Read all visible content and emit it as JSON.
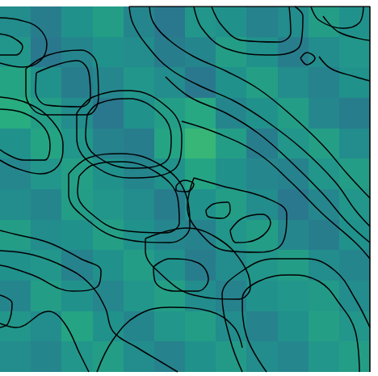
{
  "chart_data": {
    "type": "contour",
    "xlim": [
      0,
      458
    ],
    "ylim": [
      0,
      452
    ],
    "tick_labels": false,
    "grid": false,
    "color": "#000000",
    "heatmap": {
      "x_edges": [
        0,
        38,
        76,
        115,
        153,
        191,
        229,
        267,
        305,
        344,
        382,
        420,
        458
      ],
      "y_edges": [
        452,
        414,
        377,
        339,
        301,
        264,
        226,
        188,
        151,
        113,
        75,
        38,
        0
      ],
      "color_range": [
        0,
        1
      ],
      "cells": [
        [
          0.48,
          0.42,
          0.5,
          0.55,
          0.45,
          0.4,
          0.52,
          0.5,
          0.44,
          0.48,
          0.55,
          0.5
        ],
        [
          0.52,
          0.4,
          0.45,
          0.5,
          0.48,
          0.42,
          0.45,
          0.55,
          0.5,
          0.42,
          0.48,
          0.52
        ],
        [
          0.58,
          0.5,
          0.42,
          0.46,
          0.52,
          0.48,
          0.4,
          0.5,
          0.56,
          0.48,
          0.44,
          0.5
        ],
        [
          0.62,
          0.55,
          0.48,
          0.4,
          0.5,
          0.55,
          0.6,
          0.45,
          0.5,
          0.55,
          0.46,
          0.42
        ],
        [
          0.5,
          0.58,
          0.52,
          0.44,
          0.42,
          0.58,
          0.66,
          0.55,
          0.42,
          0.52,
          0.56,
          0.48
        ],
        [
          0.46,
          0.52,
          0.56,
          0.5,
          0.45,
          0.5,
          0.58,
          0.5,
          0.46,
          0.44,
          0.52,
          0.55
        ],
        [
          0.48,
          0.45,
          0.55,
          0.52,
          0.48,
          0.42,
          0.5,
          0.55,
          0.48,
          0.4,
          0.46,
          0.52
        ],
        [
          0.55,
          0.48,
          0.5,
          0.56,
          0.5,
          0.46,
          0.44,
          0.52,
          0.55,
          0.46,
          0.42,
          0.5
        ],
        [
          0.5,
          0.52,
          0.44,
          0.5,
          0.55,
          0.5,
          0.42,
          0.48,
          0.52,
          0.55,
          0.48,
          0.45
        ],
        [
          0.45,
          0.55,
          0.5,
          0.46,
          0.52,
          0.56,
          0.48,
          0.44,
          0.5,
          0.52,
          0.54,
          0.48
        ],
        [
          0.52,
          0.48,
          0.58,
          0.5,
          0.45,
          0.52,
          0.55,
          0.48,
          0.44,
          0.5,
          0.56,
          0.52
        ],
        [
          0.48,
          0.45,
          0.52,
          0.55,
          0.48,
          0.44,
          0.5,
          0.54,
          0.48,
          0.46,
          0.52,
          0.55
        ]
      ]
    },
    "contours": [
      [
        [
          0,
          438
        ],
        [
          25,
          435
        ],
        [
          48,
          425
        ],
        [
          58,
          405
        ],
        [
          50,
          385
        ],
        [
          28,
          377
        ],
        [
          0,
          382
        ]
      ],
      [
        [
          0,
          418
        ],
        [
          15,
          414
        ],
        [
          28,
          402
        ],
        [
          20,
          392
        ],
        [
          0,
          392
        ]
      ],
      [
        [
          32,
          375
        ],
        [
          60,
          392
        ],
        [
          100,
          398
        ],
        [
          120,
          380
        ],
        [
          122,
          340
        ],
        [
          108,
          318
        ],
        [
          55,
          318
        ],
        [
          32,
          345
        ],
        [
          32,
          375
        ]
      ],
      [
        [
          45,
          370
        ],
        [
          95,
          385
        ],
        [
          110,
          370
        ],
        [
          112,
          340
        ],
        [
          100,
          328
        ],
        [
          58,
          330
        ],
        [
          44,
          348
        ],
        [
          45,
          370
        ]
      ],
      [
        [
          160,
          452
        ],
        [
          458,
          452
        ],
        [
          458,
          0
        ]
      ],
      [
        [
          160,
          452
        ],
        [
          165,
          430
        ],
        [
          185,
          400
        ],
        [
          210,
          375
        ],
        [
          245,
          355
        ],
        [
          290,
          335
        ],
        [
          330,
          310
        ],
        [
          375,
          275
        ],
        [
          415,
          235
        ],
        [
          440,
          200
        ],
        [
          458,
          180
        ]
      ],
      [
        [
          185,
          452
        ],
        [
          190,
          432
        ],
        [
          210,
          410
        ],
        [
          240,
          390
        ],
        [
          280,
          372
        ],
        [
          320,
          350
        ],
        [
          360,
          318
        ],
        [
          400,
          280
        ],
        [
          430,
          245
        ],
        [
          458,
          215
        ]
      ],
      [
        [
          205,
          365
        ],
        [
          235,
          340
        ],
        [
          280,
          320
        ],
        [
          320,
          295
        ],
        [
          360,
          260
        ],
        [
          400,
          220
        ],
        [
          430,
          185
        ],
        [
          458,
          160
        ]
      ],
      [
        [
          225,
          310
        ],
        [
          270,
          295
        ],
        [
          320,
          270
        ],
        [
          360,
          235
        ],
        [
          400,
          195
        ],
        [
          440,
          160
        ],
        [
          458,
          140
        ]
      ],
      [
        [
          240,
          452
        ],
        [
          250,
          425
        ],
        [
          280,
          400
        ],
        [
          340,
          392
        ],
        [
          372,
          405
        ],
        [
          375,
          440
        ],
        [
          365,
          452
        ]
      ],
      [
        [
          262,
          452
        ],
        [
          275,
          428
        ],
        [
          300,
          410
        ],
        [
          345,
          408
        ],
        [
          360,
          420
        ],
        [
          358,
          452
        ]
      ],
      [
        [
          385,
          452
        ],
        [
          395,
          435
        ],
        [
          425,
          425
        ],
        [
          445,
          432
        ],
        [
          450,
          452
        ]
      ],
      [
        [
          372,
          388
        ],
        [
          380,
          395
        ],
        [
          390,
          388
        ],
        [
          380,
          380
        ],
        [
          372,
          388
        ]
      ],
      [
        [
          395,
          390
        ],
        [
          410,
          375
        ],
        [
          440,
          365
        ],
        [
          458,
          360
        ]
      ],
      [
        [
          400,
          440
        ],
        [
          420,
          420
        ],
        [
          458,
          410
        ]
      ],
      [
        [
          95,
          320
        ],
        [
          115,
          340
        ],
        [
          160,
          348
        ],
        [
          210,
          325
        ],
        [
          225,
          290
        ],
        [
          215,
          250
        ],
        [
          160,
          240
        ],
        [
          110,
          260
        ],
        [
          95,
          290
        ],
        [
          95,
          320
        ]
      ],
      [
        [
          108,
          318
        ],
        [
          122,
          332
        ],
        [
          160,
          338
        ],
        [
          200,
          318
        ],
        [
          212,
          290
        ],
        [
          205,
          260
        ],
        [
          162,
          252
        ],
        [
          118,
          268
        ],
        [
          106,
          292
        ],
        [
          108,
          318
        ]
      ],
      [
        [
          0,
          340
        ],
        [
          35,
          332
        ],
        [
          65,
          310
        ],
        [
          78,
          280
        ],
        [
          72,
          255
        ],
        [
          50,
          245
        ],
        [
          20,
          252
        ],
        [
          0,
          262
        ]
      ],
      [
        [
          0,
          325
        ],
        [
          30,
          320
        ],
        [
          55,
          302
        ],
        [
          62,
          280
        ],
        [
          55,
          262
        ],
        [
          30,
          262
        ],
        [
          0,
          275
        ]
      ],
      [
        [
          85,
          245
        ],
        [
          110,
          265
        ],
        [
          150,
          270
        ],
        [
          200,
          255
        ],
        [
          230,
          220
        ],
        [
          235,
          180
        ],
        [
          210,
          160
        ],
        [
          150,
          165
        ],
        [
          100,
          195
        ],
        [
          85,
          220
        ],
        [
          85,
          245
        ]
      ],
      [
        [
          98,
          242
        ],
        [
          115,
          256
        ],
        [
          150,
          260
        ],
        [
          195,
          246
        ],
        [
          220,
          215
        ],
        [
          222,
          185
        ],
        [
          205,
          172
        ],
        [
          152,
          175
        ],
        [
          108,
          200
        ],
        [
          96,
          222
        ],
        [
          98,
          242
        ]
      ],
      [
        [
          218,
          230
        ],
        [
          228,
          237
        ],
        [
          240,
          232
        ],
        [
          232,
          223
        ],
        [
          218,
          225
        ],
        [
          218,
          230
        ]
      ],
      [
        [
          255,
          200
        ],
        [
          265,
          208
        ],
        [
          282,
          210
        ],
        [
          285,
          200
        ],
        [
          275,
          190
        ],
        [
          258,
          192
        ],
        [
          255,
          200
        ]
      ],
      [
        [
          285,
          175
        ],
        [
          300,
          190
        ],
        [
          325,
          195
        ],
        [
          335,
          185
        ],
        [
          320,
          165
        ],
        [
          292,
          160
        ],
        [
          285,
          175
        ]
      ],
      [
        [
          240,
          240
        ],
        [
          275,
          230
        ],
        [
          330,
          215
        ],
        [
          355,
          195
        ],
        [
          350,
          160
        ],
        [
          320,
          148
        ],
        [
          280,
          150
        ],
        [
          245,
          175
        ],
        [
          232,
          205
        ],
        [
          240,
          240
        ]
      ],
      [
        [
          0,
          175
        ],
        [
          20,
          170
        ],
        [
          60,
          160
        ],
        [
          100,
          140
        ],
        [
          125,
          125
        ],
        [
          120,
          105
        ],
        [
          90,
          100
        ],
        [
          40,
          120
        ],
        [
          10,
          130
        ],
        [
          0,
          132
        ]
      ],
      [
        [
          0,
          150
        ],
        [
          40,
          145
        ],
        [
          80,
          130
        ],
        [
          110,
          110
        ],
        [
          130,
          80
        ],
        [
          140,
          50
        ],
        [
          170,
          30
        ],
        [
          200,
          12
        ],
        [
          220,
          0
        ]
      ],
      [
        [
          0,
          95
        ],
        [
          15,
          85
        ],
        [
          10,
          60
        ],
        [
          0,
          55
        ]
      ],
      [
        [
          180,
          165
        ],
        [
          230,
          178
        ],
        [
          270,
          165
        ],
        [
          300,
          135
        ],
        [
          310,
          105
        ],
        [
          295,
          90
        ],
        [
          240,
          95
        ],
        [
          195,
          125
        ],
        [
          180,
          150
        ],
        [
          180,
          165
        ]
      ],
      [
        [
          190,
          130
        ],
        [
          210,
          140
        ],
        [
          245,
          135
        ],
        [
          258,
          115
        ],
        [
          245,
          100
        ],
        [
          215,
          100
        ],
        [
          192,
          112
        ],
        [
          190,
          130
        ]
      ],
      [
        [
          300,
          0
        ],
        [
          285,
          40
        ],
        [
          275,
          95
        ],
        [
          300,
          125
        ],
        [
          340,
          140
        ],
        [
          380,
          140
        ],
        [
          415,
          125
        ],
        [
          440,
          90
        ],
        [
          458,
          55
        ]
      ],
      [
        [
          330,
          0
        ],
        [
          305,
          45
        ],
        [
          300,
          90
        ],
        [
          320,
          112
        ],
        [
          360,
          120
        ],
        [
          395,
          112
        ],
        [
          420,
          85
        ],
        [
          440,
          50
        ],
        [
          445,
          0
        ]
      ],
      [
        [
          120,
          0
        ],
        [
          140,
          40
        ],
        [
          170,
          70
        ],
        [
          210,
          80
        ],
        [
          260,
          75
        ],
        [
          290,
          55
        ],
        [
          300,
          30
        ]
      ],
      [
        [
          0,
          60
        ],
        [
          20,
          55
        ],
        [
          60,
          75
        ],
        [
          80,
          60
        ],
        [
          100,
          20
        ],
        [
          110,
          0
        ]
      ]
    ]
  }
}
